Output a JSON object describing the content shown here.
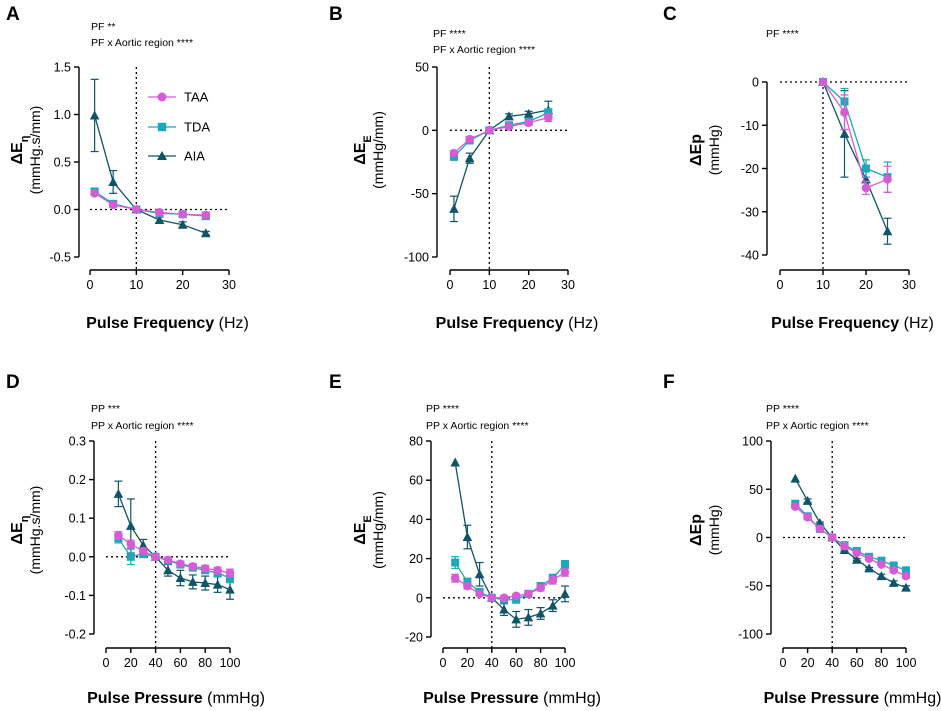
{
  "figure": {
    "legend": [
      "TAA",
      "TDA",
      "AIA"
    ]
  },
  "colors": {
    "TAA": "#d65bd6",
    "TDA": "#1aa9b8",
    "AIA": "#0f5567",
    "axis": "#000000"
  },
  "chart_data": [
    {
      "panel": "A",
      "type": "line",
      "stats": [
        "PF **",
        "PF x Aortic region ****"
      ],
      "ylabel_main": "ΔE",
      "ylabel_sub": "η",
      "yunit": "(mmHg.s/mm)",
      "xlabel_bold": "Pulse Frequency",
      "xlabel_unit": "(Hz)",
      "xlim": [
        0,
        30
      ],
      "ylim": [
        -0.5,
        1.5
      ],
      "xticks": [
        0,
        10,
        20,
        30
      ],
      "yticks": [
        -0.5,
        0.0,
        0.5,
        1.0,
        1.5
      ],
      "ytick_labels": [
        "-0.5",
        "0.0",
        "0.5",
        "1.0",
        "1.5"
      ],
      "hline": 0,
      "vline": 10,
      "legend": "top-right",
      "series": [
        {
          "name": "TAA",
          "x": [
            1,
            5,
            10,
            15,
            20,
            25
          ],
          "y": [
            0.17,
            0.05,
            0.0,
            -0.03,
            -0.05,
            -0.06
          ],
          "err": [
            0.02,
            0.02,
            0.0,
            0.02,
            0.02,
            0.03
          ]
        },
        {
          "name": "TDA",
          "x": [
            1,
            5,
            10,
            15,
            20,
            25
          ],
          "y": [
            0.19,
            0.06,
            0.0,
            -0.04,
            -0.05,
            -0.07
          ],
          "err": [
            0.02,
            0.02,
            0.0,
            0.02,
            0.02,
            0.03
          ]
        },
        {
          "name": "AIA",
          "x": [
            1,
            5,
            10,
            15,
            20,
            25
          ],
          "y": [
            0.99,
            0.29,
            0.0,
            -0.11,
            -0.16,
            -0.25
          ],
          "err": [
            0.38,
            0.12,
            0.0,
            0.03,
            0.03,
            0.02
          ]
        }
      ]
    },
    {
      "panel": "B",
      "type": "line",
      "stats": [
        "PF ****",
        "PF x Aortic region ****"
      ],
      "ylabel_main": "ΔE",
      "ylabel_sub": "E",
      "yunit": "(mmHg/mm)",
      "xlabel_bold": "Pulse Frequency",
      "xlabel_unit": "(Hz)",
      "xlim": [
        0,
        30
      ],
      "ylim": [
        -100,
        50
      ],
      "xticks": [
        0,
        10,
        20,
        30
      ],
      "yticks": [
        -100,
        -50,
        0,
        50
      ],
      "ytick_labels": [
        "-100",
        "-50",
        "0",
        "50"
      ],
      "hline": 0,
      "vline": 10,
      "series": [
        {
          "name": "TAA",
          "x": [
            1,
            5,
            10,
            15,
            20,
            25
          ],
          "y": [
            -18,
            -7,
            0,
            3,
            6,
            10
          ],
          "err": [
            2,
            2,
            0,
            1,
            2,
            3
          ]
        },
        {
          "name": "TDA",
          "x": [
            1,
            5,
            10,
            15,
            20,
            25
          ],
          "y": [
            -21,
            -8,
            0,
            4,
            7,
            14
          ],
          "err": [
            2,
            2,
            0,
            1,
            2,
            3
          ]
        },
        {
          "name": "AIA",
          "x": [
            1,
            5,
            10,
            15,
            20,
            25
          ],
          "y": [
            -62,
            -22,
            0,
            11,
            13,
            16
          ],
          "err": [
            10,
            4,
            0,
            2,
            2,
            7
          ]
        }
      ]
    },
    {
      "panel": "C",
      "type": "line",
      "stats": [
        "PF ****"
      ],
      "ylabel_main": "ΔEp",
      "ylabel_sub": "",
      "yunit": "(mmHg)",
      "xlabel_bold": "Pulse Frequency",
      "xlabel_unit": "(Hz)",
      "xlim": [
        0,
        30
      ],
      "ylim": [
        -40,
        0
      ],
      "xticks": [
        0,
        10,
        20,
        30
      ],
      "yticks": [
        -40,
        -30,
        -20,
        -10,
        0
      ],
      "ytick_labels": [
        "-40",
        "-30",
        "-20",
        "-10",
        "0"
      ],
      "hline": 0,
      "vline": 10,
      "series": [
        {
          "name": "TAA",
          "x": [
            10,
            15,
            20,
            25
          ],
          "y": [
            0,
            -7,
            -24.5,
            -22.5
          ],
          "err": [
            0,
            4,
            1.5,
            3
          ]
        },
        {
          "name": "TDA",
          "x": [
            10,
            15,
            20,
            25
          ],
          "y": [
            0,
            -4.5,
            -20,
            -22
          ],
          "err": [
            0,
            3,
            2,
            3.5
          ]
        },
        {
          "name": "AIA",
          "x": [
            10,
            15,
            20,
            25
          ],
          "y": [
            0,
            -12,
            -22.5,
            -34.5
          ],
          "err": [
            0,
            10,
            2,
            3
          ]
        }
      ]
    },
    {
      "panel": "D",
      "type": "line",
      "stats": [
        "PP ***",
        "PP x Aortic region ****"
      ],
      "ylabel_main": "ΔE",
      "ylabel_sub": "η",
      "yunit": "(mmHg.s/mm)",
      "xlabel_bold": "Pulse Pressure",
      "xlabel_unit": "(mmHg)",
      "xlim": [
        0,
        100
      ],
      "ylim": [
        -0.2,
        0.3
      ],
      "xticks": [
        0,
        20,
        40,
        60,
        80,
        100
      ],
      "yticks": [
        -0.2,
        -0.1,
        0.0,
        0.1,
        0.2,
        0.3
      ],
      "ytick_labels": [
        "-0.2",
        "-0.1",
        "0.0",
        "0.1",
        "0.2",
        "0.3"
      ],
      "hline": 0,
      "vline": 40,
      "series": [
        {
          "name": "TAA",
          "x": [
            10,
            20,
            30,
            40,
            50,
            60,
            70,
            80,
            90,
            100
          ],
          "y": [
            0.055,
            0.033,
            0.015,
            0.0,
            -0.008,
            -0.018,
            -0.025,
            -0.03,
            -0.035,
            -0.042
          ],
          "err": [
            0.01,
            0.01,
            0.008,
            0,
            0.006,
            0.006,
            0.007,
            0.008,
            0.008,
            0.01
          ]
        },
        {
          "name": "TDA",
          "x": [
            10,
            20,
            30,
            40,
            50,
            60,
            70,
            80,
            90,
            100
          ],
          "y": [
            0.048,
            0.0,
            0.008,
            0.0,
            -0.01,
            -0.02,
            -0.028,
            -0.035,
            -0.042,
            -0.055
          ],
          "err": [
            0.012,
            0.02,
            0.01,
            0,
            0.006,
            0.006,
            0.007,
            0.008,
            0.01,
            0.012
          ]
        },
        {
          "name": "AIA",
          "x": [
            10,
            20,
            30,
            40,
            50,
            60,
            70,
            80,
            90,
            100
          ],
          "y": [
            0.163,
            0.08,
            0.03,
            0.0,
            -0.035,
            -0.055,
            -0.065,
            -0.068,
            -0.072,
            -0.085
          ],
          "err": [
            0.033,
            0.07,
            0.015,
            0,
            0.015,
            0.02,
            0.018,
            0.018,
            0.02,
            0.025
          ]
        }
      ]
    },
    {
      "panel": "E",
      "type": "line",
      "stats": [
        "PP ****",
        "PP x Aortic region ****"
      ],
      "ylabel_main": "ΔE",
      "ylabel_sub": "E",
      "yunit": "(mmHg/mm)",
      "xlabel_bold": "Pulse Pressure",
      "xlabel_unit": "(mmHg)",
      "xlim": [
        0,
        100
      ],
      "ylim": [
        -20,
        80
      ],
      "xticks": [
        0,
        20,
        40,
        60,
        80,
        100
      ],
      "yticks": [
        -20,
        0,
        20,
        40,
        60,
        80
      ],
      "ytick_labels": [
        "-20",
        "0",
        "20",
        "40",
        "60",
        "80"
      ],
      "hline": 0,
      "vline": 40,
      "series": [
        {
          "name": "TAA",
          "x": [
            10,
            20,
            30,
            40,
            50,
            60,
            70,
            80,
            90,
            100
          ],
          "y": [
            10,
            6,
            2,
            0,
            0,
            1,
            2,
            5,
            9,
            13
          ],
          "err": [
            2,
            1.5,
            1,
            0,
            1,
            1,
            1,
            1.5,
            2,
            2
          ]
        },
        {
          "name": "TDA",
          "x": [
            10,
            20,
            30,
            40,
            50,
            60,
            70,
            80,
            90,
            100
          ],
          "y": [
            18,
            8,
            3,
            0,
            -1,
            -1,
            2,
            6,
            10,
            17
          ],
          "err": [
            3,
            2,
            1.5,
            0,
            1,
            1,
            1,
            1.5,
            2,
            2
          ]
        },
        {
          "name": "AIA",
          "x": [
            10,
            20,
            30,
            40,
            50,
            60,
            70,
            80,
            90,
            100
          ],
          "y": [
            69,
            31,
            12,
            0,
            -6,
            -11,
            -10,
            -8,
            -4,
            2
          ],
          "err": [
            0,
            6,
            6,
            0,
            3,
            4,
            4,
            3,
            3,
            4
          ]
        }
      ]
    },
    {
      "panel": "F",
      "type": "line",
      "stats": [
        "PP ****",
        "PP x Aortic region ****"
      ],
      "ylabel_main": "ΔEp",
      "ylabel_sub": "",
      "yunit": "(mmHg)",
      "xlabel_bold": "Pulse Pressure",
      "xlabel_unit": "(mmHg)",
      "xlim": [
        0,
        100
      ],
      "ylim": [
        -100,
        100
      ],
      "xticks": [
        0,
        20,
        40,
        60,
        80,
        100
      ],
      "yticks": [
        -100,
        -50,
        0,
        50,
        100
      ],
      "ytick_labels": [
        "-100",
        "-50",
        "0",
        "50",
        "100"
      ],
      "hline": 0,
      "vline": 40,
      "series": [
        {
          "name": "TAA",
          "x": [
            10,
            20,
            30,
            40,
            50,
            60,
            70,
            80,
            90,
            100
          ],
          "y": [
            32,
            21,
            9,
            0,
            -9,
            -16,
            -22,
            -28,
            -34,
            -40
          ],
          "err": [
            2,
            2,
            1,
            0,
            1,
            1,
            1,
            1.5,
            2,
            2
          ]
        },
        {
          "name": "TDA",
          "x": [
            10,
            20,
            30,
            40,
            50,
            60,
            70,
            80,
            90,
            100
          ],
          "y": [
            35,
            22,
            9,
            0,
            -8,
            -14,
            -20,
            -24,
            -29,
            -34
          ],
          "err": [
            2,
            2,
            1,
            0,
            1,
            1,
            1,
            1.5,
            2,
            2
          ]
        },
        {
          "name": "AIA",
          "x": [
            10,
            20,
            30,
            40,
            50,
            60,
            70,
            80,
            90,
            100
          ],
          "y": [
            61,
            38,
            15,
            0,
            -13,
            -23,
            -32,
            -40,
            -47,
            -52
          ],
          "err": [
            0,
            2,
            1,
            0,
            1,
            1,
            1,
            2,
            2,
            2
          ]
        }
      ]
    }
  ]
}
